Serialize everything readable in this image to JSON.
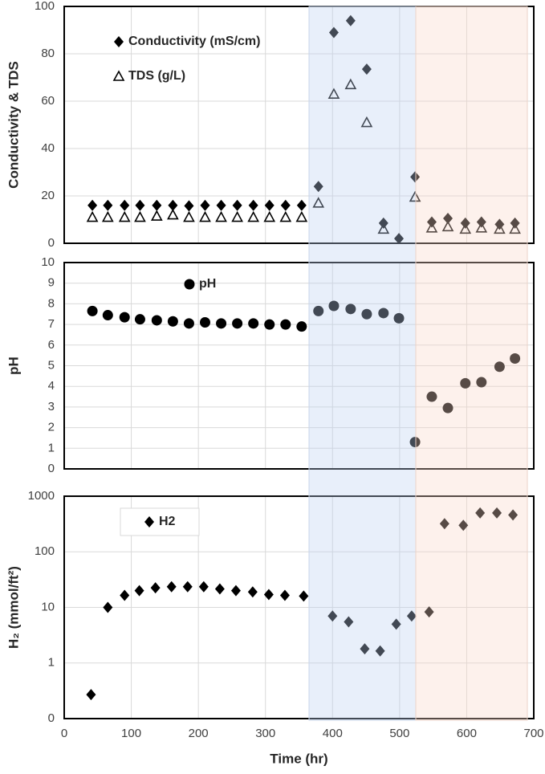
{
  "chart_data": [
    {
      "type": "scatter",
      "ylabel": "Conductivity & TDS",
      "ylim": [
        0,
        100
      ],
      "yticks": [
        0,
        20,
        40,
        60,
        80,
        100
      ],
      "grid": true,
      "x": [
        42,
        65,
        90,
        113,
        138,
        162,
        186,
        210,
        234,
        258,
        282,
        306,
        330,
        354,
        379,
        402,
        427,
        451,
        476,
        499,
        523,
        548,
        572,
        598,
        622,
        649,
        672
      ],
      "series": [
        {
          "name": "Conductivity (mS/cm)",
          "color": "#000000",
          "marker": "diamond",
          "values": [
            16,
            16,
            16,
            16,
            16,
            16,
            15.8,
            16,
            16,
            16,
            16,
            16,
            16,
            16,
            24,
            89,
            94,
            73.5,
            8.5,
            2,
            28,
            9,
            10.5,
            8.5,
            9,
            8,
            8.5
          ]
        },
        {
          "name": "TDS (g/L)",
          "color": "#000000",
          "marker": "triangle-open",
          "values": [
            11,
            11,
            11,
            11,
            11.5,
            12,
            11,
            11,
            11,
            11,
            11,
            11,
            11,
            11,
            17,
            63,
            67,
            51,
            6,
            null,
            19.5,
            6.5,
            7,
            6,
            6.5,
            6,
            6
          ]
        }
      ]
    },
    {
      "type": "scatter",
      "ylabel": "pH",
      "ylim": [
        0,
        10
      ],
      "yticks": [
        0,
        1,
        2,
        3,
        4,
        5,
        6,
        7,
        8,
        9,
        10
      ],
      "grid": true,
      "x": [
        42,
        65,
        90,
        113,
        138,
        162,
        186,
        210,
        234,
        258,
        282,
        306,
        330,
        354,
        379,
        402,
        427,
        451,
        476,
        499,
        523,
        548,
        572,
        598,
        622,
        649,
        672
      ],
      "series": [
        {
          "name": "pH",
          "color": "#000000",
          "marker": "circle",
          "values": [
            7.65,
            7.45,
            7.35,
            7.25,
            7.2,
            7.15,
            7.05,
            7.1,
            7.05,
            7.05,
            7.05,
            7.0,
            7.0,
            6.9,
            7.65,
            7.9,
            7.75,
            7.5,
            7.55,
            7.3,
            1.3,
            3.5,
            2.95,
            4.15,
            4.2,
            4.95,
            5.35
          ]
        }
      ]
    },
    {
      "type": "scatter",
      "ylabel": "H₂ (mmol/ft²)",
      "xlabel": "Time (hr)",
      "log_y": true,
      "grid": true,
      "ylim": [
        0.1,
        1000
      ],
      "yticks": [
        {
          "value": 0.1,
          "label": "0"
        },
        1,
        10,
        100,
        1000
      ],
      "xlim": [
        0,
        700
      ],
      "xticks": [
        0,
        100,
        200,
        300,
        400,
        500,
        600,
        700
      ],
      "x": [
        40,
        65,
        90,
        112,
        136,
        160,
        184,
        208,
        232,
        256,
        281,
        305,
        329,
        357,
        400,
        424,
        448,
        471,
        495,
        518,
        544,
        567,
        595,
        620,
        645,
        669
      ],
      "series": [
        {
          "name": "H2",
          "color": "#000000",
          "marker": "diamond",
          "values": [
            0.27,
            10,
            16.5,
            20,
            22.5,
            23.5,
            23.5,
            23.5,
            21.5,
            20,
            19,
            17,
            16.5,
            16,
            7,
            5.5,
            1.8,
            1.65,
            5,
            7,
            8.3,
            320,
            300,
            500,
            500,
            460
          ]
        }
      ]
    }
  ]
}
